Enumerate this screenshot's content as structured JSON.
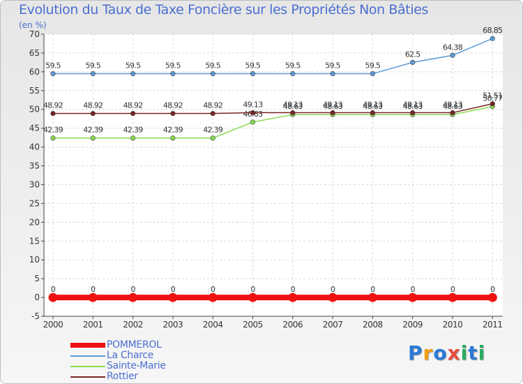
{
  "chart_data": {
    "type": "line",
    "title": "Evolution du Taux de Taxe Foncière sur les Propriétés Non Bâties",
    "ylabel": "(en %)",
    "xlabel": "",
    "ylim": [
      -5,
      70
    ],
    "yticks": [
      -5,
      0,
      5,
      10,
      15,
      20,
      25,
      30,
      35,
      40,
      45,
      50,
      55,
      60,
      65,
      70
    ],
    "categories": [
      "2000",
      "2001",
      "2002",
      "2003",
      "2004",
      "2005",
      "2006",
      "2007",
      "2008",
      "2009",
      "2010",
      "2011"
    ],
    "grid": true,
    "legend_position": "bottom-left",
    "series": [
      {
        "name": "POMMEROL",
        "color": "#ee1111",
        "values": [
          0,
          0,
          0,
          0,
          0,
          0,
          0,
          0,
          0,
          0,
          0,
          0
        ],
        "labels": [
          "0",
          "0",
          "0",
          "0",
          "0",
          "0",
          "0",
          "0",
          "0",
          "0",
          "0",
          "0"
        ]
      },
      {
        "name": "La Charce",
        "color": "#5b9bd5",
        "values": [
          59.5,
          59.5,
          59.5,
          59.5,
          59.5,
          59.5,
          59.5,
          59.5,
          59.5,
          62.5,
          64.38,
          68.85
        ],
        "labels": [
          "59.5",
          "59.5",
          "59.5",
          "59.5",
          "59.5",
          "59.5",
          "59.5",
          "59.5",
          "59.5",
          "62.5",
          "64.38",
          "68.85"
        ]
      },
      {
        "name": "Sainte-Marie",
        "color": "#8cdc52",
        "values": [
          42.39,
          42.39,
          42.39,
          42.39,
          42.39,
          46.63,
          48.63,
          48.63,
          48.63,
          48.63,
          48.63,
          50.77
        ],
        "labels": [
          "42.39",
          "42.39",
          "42.39",
          "42.39",
          "42.39",
          "46.63",
          "48.63",
          "48.63",
          "48.63",
          "48.63",
          "48.63",
          "50.77"
        ]
      },
      {
        "name": "Rottier",
        "color": "#7a2424",
        "values": [
          48.92,
          48.92,
          48.92,
          48.92,
          48.92,
          49.13,
          49.13,
          49.13,
          49.13,
          49.13,
          49.13,
          51.51
        ],
        "labels": [
          "48.92",
          "48.92",
          "48.92",
          "48.92",
          "48.92",
          "49.13",
          "49.13",
          "49.13",
          "49.13",
          "49.13",
          "49.13",
          "51.51"
        ]
      }
    ]
  },
  "logo": {
    "letters": [
      "P",
      "r",
      "o",
      "x",
      "i",
      "t",
      "i"
    ],
    "colors": [
      "#2b7bd6",
      "#f39c12",
      "#2b7bd6",
      "#e74c3c",
      "#27ae60",
      "#2b7bd6",
      "#27ae60"
    ]
  }
}
